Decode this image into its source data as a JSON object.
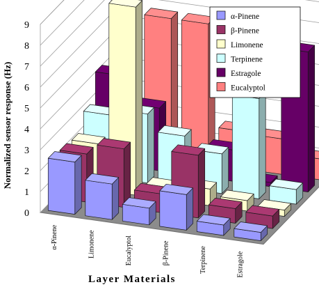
{
  "chart_data": {
    "type": "bar",
    "subtype": "3d-clustered-bar",
    "title": "",
    "xlabel": "Layer Materials",
    "ylabel": "Normalized sensor response (Hz)",
    "ylim": [
      0,
      9
    ],
    "yticks": [
      "0",
      "1",
      "2",
      "3",
      "4",
      "5",
      "6",
      "7",
      "8",
      "9"
    ],
    "categories": [
      "α-Pinene",
      "Limonene",
      "Eucalyptol",
      "β-Pinene",
      "Terpinene",
      "Estragole"
    ],
    "legend_position": "top-right",
    "grid": true,
    "series": [
      {
        "name": "α-Pinene",
        "color": "#9999FF",
        "values": [
          2.5,
          1.7,
          0.8,
          1.7,
          0.5,
          0.4
        ]
      },
      {
        "name": "β-Pinene",
        "color": "#993366",
        "values": [
          2.3,
          2.8,
          0.9,
          3.0,
          0.7,
          0.6
        ]
      },
      {
        "name": "Limonene",
        "color": "#FFFFCC",
        "values": [
          2.2,
          9.0,
          0.6,
          0.8,
          0.5,
          0.3
        ]
      },
      {
        "name": "Terpinene",
        "color": "#CCFFFF",
        "values": [
          3.0,
          3.3,
          2.5,
          1.9,
          4.8,
          0.7
        ]
      },
      {
        "name": "Estragole",
        "color": "#660066",
        "values": [
          4.3,
          3.0,
          0.5,
          1.5,
          0.2,
          6.7
        ]
      },
      {
        "name": "Eucalyptol",
        "color": "#FF8080",
        "values": [
          3.6,
          6.7,
          6.7,
          1.8,
          1.7,
          1.0
        ]
      }
    ]
  }
}
